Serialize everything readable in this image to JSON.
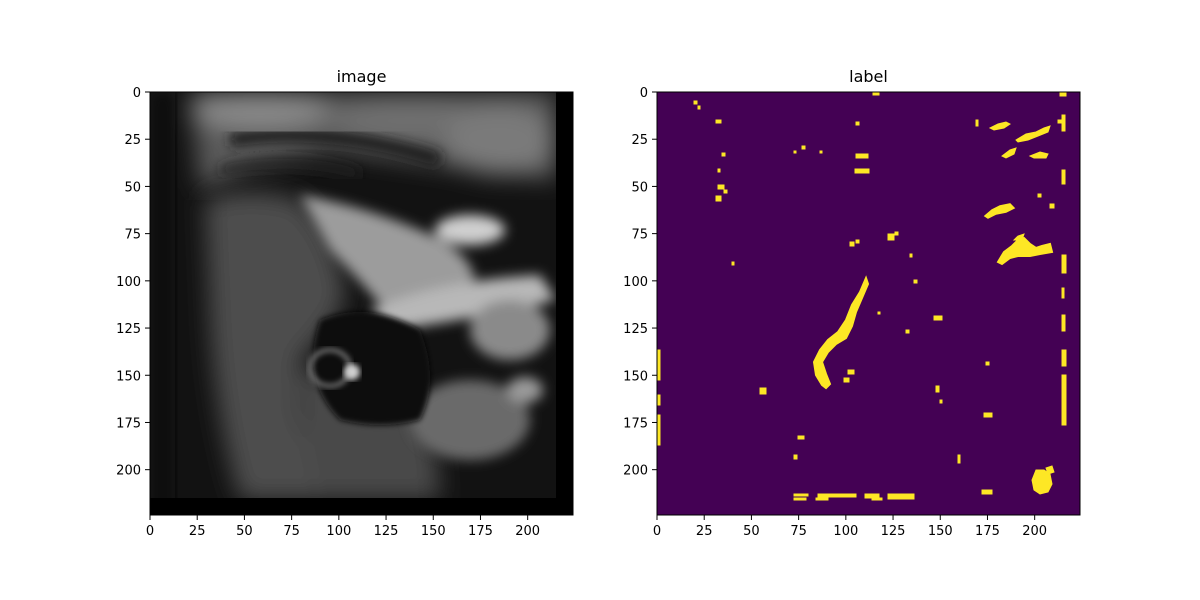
{
  "figure": {
    "panels": [
      {
        "title": "image",
        "colormap": "gray",
        "xticks": [
          "0",
          "25",
          "50",
          "75",
          "100",
          "125",
          "150",
          "175",
          "200"
        ],
        "yticks": [
          "0",
          "25",
          "50",
          "75",
          "100",
          "125",
          "150",
          "175",
          "200"
        ]
      },
      {
        "title": "label",
        "colormap": "viridis",
        "background_color": "#440154",
        "foreground_color": "#fde725",
        "xticks": [
          "0",
          "25",
          "50",
          "75",
          "100",
          "125",
          "150",
          "175",
          "200"
        ],
        "yticks": [
          "0",
          "25",
          "50",
          "75",
          "100",
          "125",
          "150",
          "175",
          "200"
        ]
      }
    ],
    "extent": [
      0,
      224,
      224,
      0
    ]
  }
}
